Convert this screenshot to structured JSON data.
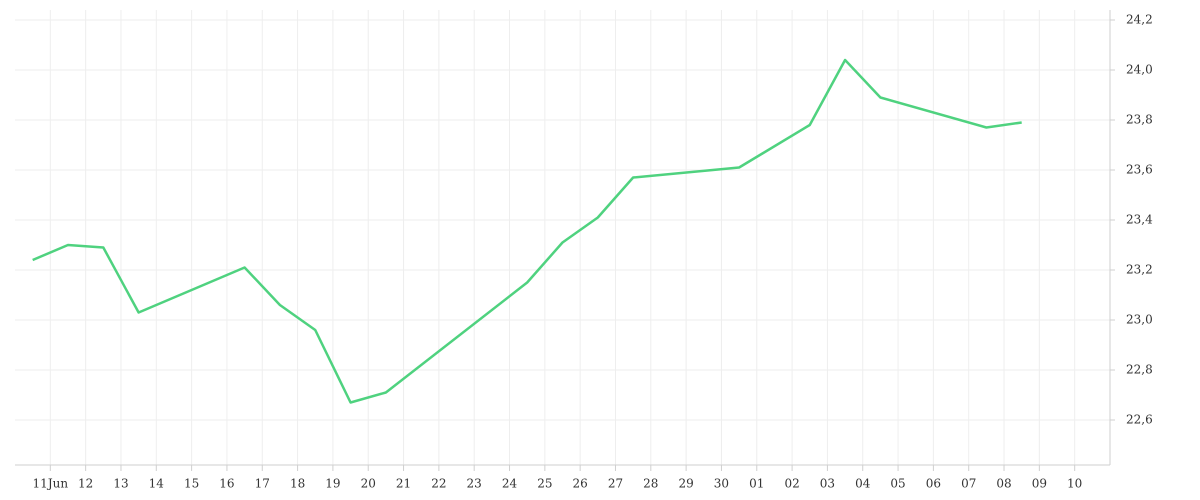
{
  "chart_data": {
    "type": "line",
    "x": [
      -0.5,
      0.5,
      1.5,
      2.5,
      5.5,
      6.5,
      7.5,
      8.5,
      9.5,
      13.5,
      14.5,
      15.5,
      16.5,
      19.5,
      21.5,
      22.5,
      23.5,
      26.5,
      27.5
    ],
    "series": [
      {
        "name": "value",
        "color": "#4fd27f",
        "values": [
          23.24,
          23.3,
          23.29,
          23.03,
          23.21,
          23.06,
          22.96,
          22.67,
          22.71,
          23.15,
          23.31,
          23.41,
          23.57,
          23.61,
          23.78,
          24.04,
          23.89,
          23.77,
          23.79
        ]
      }
    ],
    "xlim": [
      -1,
      30
    ],
    "xticks": [
      {
        "value": 0,
        "label": "11Jun"
      },
      {
        "value": 1,
        "label": "12"
      },
      {
        "value": 2,
        "label": "13"
      },
      {
        "value": 3,
        "label": "14"
      },
      {
        "value": 4,
        "label": "15"
      },
      {
        "value": 5,
        "label": "16"
      },
      {
        "value": 6,
        "label": "17"
      },
      {
        "value": 7,
        "label": "18"
      },
      {
        "value": 8,
        "label": "19"
      },
      {
        "value": 9,
        "label": "20"
      },
      {
        "value": 10,
        "label": "21"
      },
      {
        "value": 11,
        "label": "22"
      },
      {
        "value": 12,
        "label": "23"
      },
      {
        "value": 13,
        "label": "24"
      },
      {
        "value": 14,
        "label": "25"
      },
      {
        "value": 15,
        "label": "26"
      },
      {
        "value": 16,
        "label": "27"
      },
      {
        "value": 17,
        "label": "28"
      },
      {
        "value": 18,
        "label": "29"
      },
      {
        "value": 19,
        "label": "30"
      },
      {
        "value": 20,
        "label": "01"
      },
      {
        "value": 21,
        "label": "02"
      },
      {
        "value": 22,
        "label": "03"
      },
      {
        "value": 23,
        "label": "04"
      },
      {
        "value": 24,
        "label": "05"
      },
      {
        "value": 25,
        "label": "06"
      },
      {
        "value": 26,
        "label": "07"
      },
      {
        "value": 27,
        "label": "08"
      },
      {
        "value": 28,
        "label": "09"
      },
      {
        "value": 29,
        "label": "10"
      }
    ],
    "ylim": [
      22.42,
      24.24
    ],
    "yticks": [
      {
        "value": 22.6,
        "label": "22,6"
      },
      {
        "value": 22.8,
        "label": "22,8"
      },
      {
        "value": 23.0,
        "label": "23,0"
      },
      {
        "value": 23.2,
        "label": "23,2"
      },
      {
        "value": 23.4,
        "label": "23,4"
      },
      {
        "value": 23.6,
        "label": "23,6"
      },
      {
        "value": 23.8,
        "label": "23,8"
      },
      {
        "value": 24.0,
        "label": "24,0"
      },
      {
        "value": 24.2,
        "label": "24,2"
      }
    ],
    "grid": true
  }
}
